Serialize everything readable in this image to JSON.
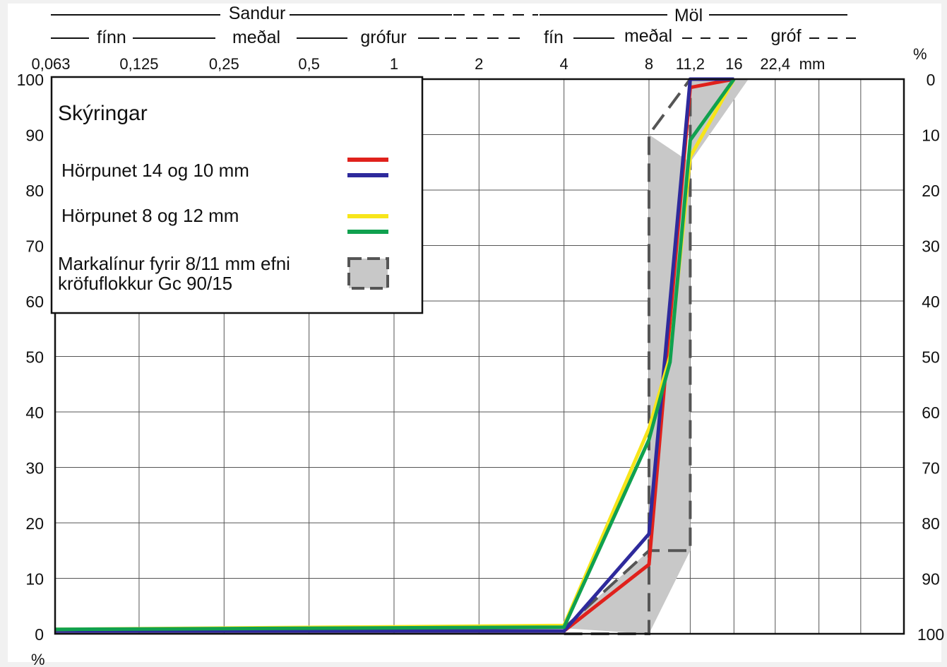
{
  "chart_data": {
    "type": "line",
    "x_scale": "log",
    "x_unit": "mm",
    "y_unit_left": "%",
    "y_unit_right": "%",
    "x_ticks": [
      "0,063",
      "0,125",
      "0,25",
      "0,5",
      "1",
      "2",
      "4",
      "8",
      "11,2",
      "16",
      "22,4"
    ],
    "x_tick_values": [
      0.063,
      0.125,
      0.25,
      0.5,
      1,
      2,
      4,
      8,
      11.2,
      16,
      22.4
    ],
    "xlim": [
      0.063,
      64
    ],
    "ylim": [
      0,
      100
    ],
    "y_ticks_left": [
      "0",
      "10",
      "20",
      "30",
      "40",
      "50",
      "60",
      "70",
      "80",
      "90",
      "100"
    ],
    "y_ticks_right": [
      "100",
      "90",
      "80",
      "70",
      "60",
      "50",
      "40",
      "30",
      "20",
      "10",
      "0"
    ],
    "grid": true,
    "header_top": {
      "sandur": "Sandur",
      "mol": "Möl"
    },
    "header_sub": {
      "finn": "fínn",
      "medal": "meðal",
      "grofur": "grófur",
      "fin": "fín",
      "medal2": "meðal",
      "grof": "gróf"
    },
    "legend": {
      "title": "Skýringar",
      "position": "top-left",
      "entries": [
        {
          "label": "Hörpunet 14 og 10 mm",
          "colors": [
            "#e0211c",
            "#2e2a9c"
          ]
        },
        {
          "label": "Hörpunet   8 og 12 mm",
          "colors": [
            "#f7e51a",
            "#10a14f"
          ]
        },
        {
          "label_line1": "Markalínur fyrir 8/11 mm efni",
          "label_line2": "kröfuflokkur Gc 90/15",
          "fill": "#c8c8c8",
          "stroke": "#555555"
        }
      ]
    },
    "envelope": {
      "upper": [
        {
          "x": 4,
          "y": 1
        },
        {
          "x": 8,
          "y": 15
        },
        {
          "x": 11.2,
          "y": 15
        },
        {
          "x": 11.2,
          "y": 85
        },
        {
          "x": 11.2,
          "y": 100
        },
        {
          "x": 16,
          "y": 100
        }
      ],
      "lower": [
        {
          "x": 4,
          "y": 0
        },
        {
          "x": 8,
          "y": 0
        },
        {
          "x": 8,
          "y": 90
        },
        {
          "x": 11.2,
          "y": 100
        }
      ],
      "polygon": [
        {
          "x": 4,
          "y": 1
        },
        {
          "x": 8,
          "y": 0
        },
        {
          "x": 11.2,
          "y": 15
        },
        {
          "x": 11.2,
          "y": 100
        },
        {
          "x": 18,
          "y": 100
        },
        {
          "x": 11.2,
          "y": 85
        },
        {
          "x": 8,
          "y": 90
        },
        {
          "x": 8,
          "y": 15
        }
      ]
    },
    "series": [
      {
        "color": "#e0211c",
        "points": [
          {
            "x": 0.063,
            "y": 0.5
          },
          {
            "x": 4,
            "y": 0.5
          },
          {
            "x": 8,
            "y": 12.5
          },
          {
            "x": 11.2,
            "y": 98.5
          },
          {
            "x": 16,
            "y": 100
          }
        ]
      },
      {
        "color": "#2e2a9c",
        "points": [
          {
            "x": 0.063,
            "y": 0.5
          },
          {
            "x": 4,
            "y": 0.5
          },
          {
            "x": 8,
            "y": 18
          },
          {
            "x": 11.2,
            "y": 100
          },
          {
            "x": 16,
            "y": 100
          }
        ]
      },
      {
        "color": "#f7e51a",
        "points": [
          {
            "x": 0.063,
            "y": 0.8
          },
          {
            "x": 4,
            "y": 1.5
          },
          {
            "x": 8,
            "y": 37
          },
          {
            "x": 9.5,
            "y": 50
          },
          {
            "x": 11.2,
            "y": 86
          },
          {
            "x": 16,
            "y": 100
          }
        ]
      },
      {
        "color": "#10a14f",
        "points": [
          {
            "x": 0.063,
            "y": 0.8
          },
          {
            "x": 4,
            "y": 1.2
          },
          {
            "x": 8,
            "y": 35
          },
          {
            "x": 9.5,
            "y": 49
          },
          {
            "x": 11.2,
            "y": 89
          },
          {
            "x": 16,
            "y": 100
          }
        ]
      }
    ]
  }
}
